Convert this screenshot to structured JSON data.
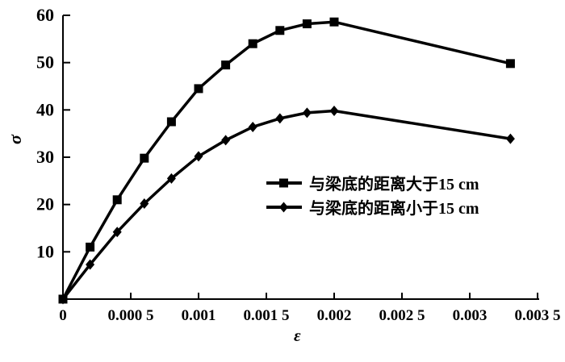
{
  "chart_data": {
    "type": "line",
    "title": "",
    "xlabel": "ε",
    "ylabel": "σ",
    "x": [
      0,
      0.0002,
      0.0004,
      0.0006,
      0.0008,
      0.001,
      0.0012,
      0.0014,
      0.0016,
      0.0018,
      0.002,
      0.0033
    ],
    "series": [
      {
        "name": "与梁底的距离大于15 cm",
        "marker": "square",
        "values": [
          0,
          11,
          21,
          29.8,
          37.5,
          44.5,
          49.5,
          54,
          56.8,
          58.2,
          58.6,
          49.8
        ]
      },
      {
        "name": "与梁底的距离小于15 cm",
        "marker": "diamond",
        "values": [
          0,
          7.3,
          14.2,
          20.2,
          25.5,
          30.2,
          33.6,
          36.4,
          38.2,
          39.4,
          39.8,
          33.9
        ]
      }
    ],
    "xlim": [
      0,
      0.0035
    ],
    "ylim": [
      0,
      60
    ],
    "x_ticks": [
      0,
      0.0005,
      0.001,
      0.0015,
      0.002,
      0.0025,
      0.003,
      0.0035
    ],
    "x_tick_labels": [
      "0",
      "0.000 5",
      "0.001",
      "0.001 5",
      "0.002",
      "0.002 5",
      "0.003",
      "0.003 5"
    ],
    "y_ticks": [
      10,
      20,
      30,
      40,
      50,
      60
    ],
    "y_tick_labels": [
      "10",
      "20",
      "30",
      "40",
      "50",
      "60"
    ],
    "grid": false,
    "legend_position": "inside-center-right",
    "colors": {
      "line": "#000000",
      "background": "#ffffff",
      "text": "#000000"
    }
  }
}
